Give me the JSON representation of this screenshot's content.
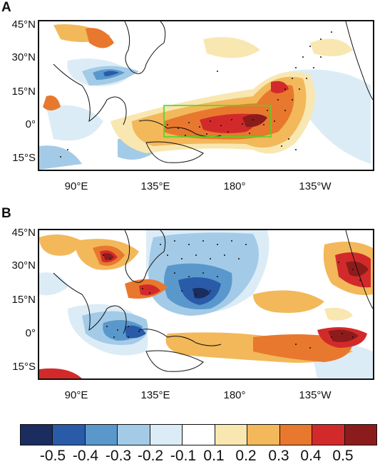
{
  "panels": [
    {
      "letter": "A",
      "lat_ticks": [
        "45°N",
        "30°N",
        "15°N",
        "0°",
        "15°S"
      ],
      "lon_ticks": [
        "90°E",
        "135°E",
        "180°",
        "135°W"
      ]
    },
    {
      "letter": "B",
      "lat_ticks": [
        "45°N",
        "30°N",
        "15°N",
        "0°",
        "15°S"
      ],
      "lon_ticks": [
        "90°E",
        "135°E",
        "180°",
        "135°W"
      ]
    }
  ],
  "colorbar": {
    "labels": [
      "-0.5",
      "-0.4",
      "-0.3",
      "-0.2",
      "-0.1",
      "0.1",
      "0.2",
      "0.3",
      "0.4",
      "0.5"
    ],
    "colors": [
      "#1a2d5e",
      "#2a5ba8",
      "#5a98cc",
      "#a3cbe8",
      "#dcecf6",
      "#ffffff",
      "#f8e7b0",
      "#f2b85a",
      "#e8782e",
      "#d22a2a",
      "#8c1c1c"
    ]
  },
  "highlight_box_color": "#44dd22"
}
